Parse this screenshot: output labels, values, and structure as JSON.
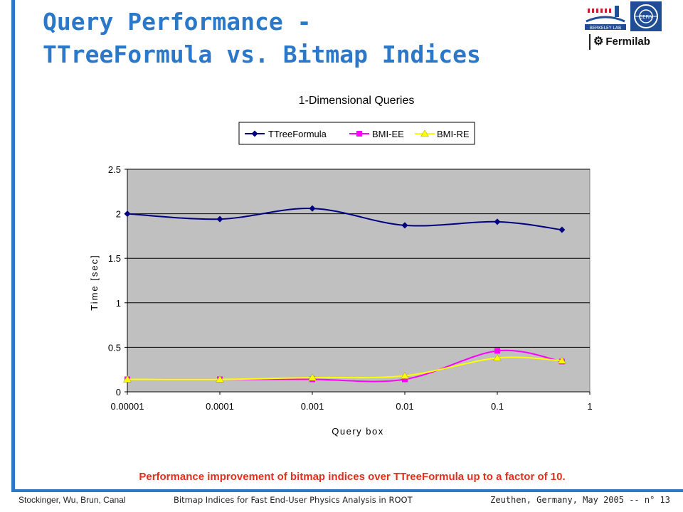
{
  "slide": {
    "title_line1": "Query Performance -",
    "title_line2": "TTreeFormula vs. Bitmap Indices",
    "caption": "Performance improvement of bitmap indices over TTreeFormula up to a factor of 10.",
    "footer_left": "Stockinger, Wu, Brun, Canal",
    "footer_center": "Bitmap Indices for Fast End-User Physics Analysis in ROOT",
    "footer_right": "Zeuthen, Germany, May 2005  -- n° 13",
    "logos": {
      "lbl_text": "BERKELEY LAB",
      "cern_text": "CERN",
      "fermilab_text": "Fermilab"
    },
    "accent_color": "#2b78c9",
    "caption_color": "#e0301e"
  },
  "chart_data": {
    "type": "line",
    "title": "1-Dimensional Queries",
    "xlabel": "Query box",
    "ylabel": "Time [sec]",
    "x_scale": "log",
    "x": [
      1e-05,
      0.0001,
      0.001,
      0.01,
      0.1,
      0.5
    ],
    "xlim": [
      1e-05,
      1
    ],
    "ylim": [
      0,
      2.5
    ],
    "x_ticks": [
      "0.00001",
      "0.0001",
      "0.001",
      "0.01",
      "0.1",
      "1"
    ],
    "y_ticks": [
      "0",
      "0.5",
      "1",
      "1.5",
      "2",
      "2.5"
    ],
    "grid": "horizontal",
    "plot_background": "#c0c0c0",
    "legend_position": "top",
    "series": [
      {
        "name": "TTreeFormula",
        "color": "#000080",
        "marker": "diamond",
        "values": [
          2.0,
          1.94,
          2.06,
          1.87,
          1.91,
          1.82
        ]
      },
      {
        "name": "BMI-EE",
        "color": "#ff00ff",
        "marker": "square",
        "values": [
          0.14,
          0.14,
          0.14,
          0.14,
          0.46,
          0.34
        ]
      },
      {
        "name": "BMI-RE",
        "color": "#ffff00",
        "marker": "triangle",
        "values": [
          0.14,
          0.14,
          0.16,
          0.18,
          0.38,
          0.35
        ]
      }
    ]
  }
}
